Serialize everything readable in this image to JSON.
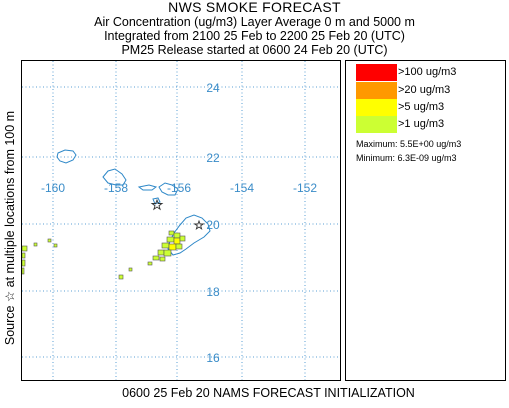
{
  "header": {
    "title": "NWS SMOKE FORECAST",
    "line2": "Air Concentration (ug/m3) Layer Average    0 m and  5000 m",
    "line3": "Integrated from 2100 25 Feb to 2200 25 Feb 20 (UTC)",
    "line4": "PM25 Release started at 0600 24 Feb 20 (UTC)"
  },
  "side_label": "Source ☆   at multiple locations          from   100 m",
  "footer": "0600 25 Feb 20 NAMS FORECAST INITIALIZATION",
  "map": {
    "latitude_labels": [
      "24",
      "22",
      "20",
      "18",
      "16"
    ],
    "longitude_labels": [
      "-160",
      "-158",
      "-156",
      "-154",
      "-152"
    ],
    "grid_color": "#5a9fd4",
    "label_color": "#3a8cc8",
    "coast_color": "#2e88c8",
    "source_marker": "star-icon"
  },
  "legend": {
    "items": [
      {
        "label": ">100 ug/m3",
        "color": "#ff0000"
      },
      {
        "label": ">20 ug/m3",
        "color": "#ff9900"
      },
      {
        "label": ">5 ug/m3",
        "color": "#ffff00"
      },
      {
        "label": ">1 ug/m3",
        "color": "#ccff33"
      }
    ],
    "maximum": "Maximum: 5.5E+00 ug/m3",
    "minimum": "Minimum: 6.3E-09 ug/m3"
  }
}
